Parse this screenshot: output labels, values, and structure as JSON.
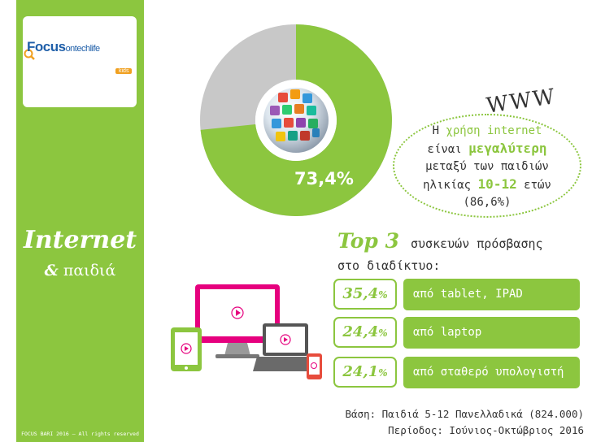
{
  "logo": {
    "brand": "Focus",
    "brand_suffix": "ontechlife",
    "badge": "kids"
  },
  "sidebar": {
    "title": "Internet",
    "subtitle_amp": "&",
    "subtitle": "παιδιά",
    "copyright": "FOCUS BARI 2016 – All rights reserved"
  },
  "donut": {
    "value": 73.4,
    "label": "73,4%",
    "colors": {
      "filled": "#8cc63f",
      "rest": "#c8c8c8"
    }
  },
  "www": "WWW",
  "bubble": {
    "l1_a": "Η ",
    "l1_b": "χρήση internet",
    "l2_a": "είναι ",
    "l2_b": "μεγαλύτερη",
    "l3": "μεταξύ των παιδιών",
    "l4_a": "ηλικίας ",
    "l4_b": "10-12",
    "l4_c": " ετών",
    "l5": "(86,6%)"
  },
  "top3": {
    "title": "Top 3",
    "line1": "συσκευών πρόσβασης",
    "line2": "στο διαδίκτυο:"
  },
  "devices": [
    {
      "pct": "35,4",
      "pct_sign": "%",
      "label": "από tablet, IPAD"
    },
    {
      "pct": "24,4",
      "pct_sign": "%",
      "label": "από laptop"
    },
    {
      "pct": "24,1",
      "pct_sign": "%",
      "label": "από σταθερό υπολογιστή"
    }
  ],
  "footer": {
    "basis": "Βάση: Παιδιά 5-12 Πανελλαδικά (824.000)",
    "period": "Περίοδος: Ιούνιος-Οκτώβριος 2016"
  },
  "icons": [
    "magnifier-icon",
    "globe-apps-icon",
    "monitor-icon",
    "tablet-icon",
    "laptop-icon",
    "smartphone-icon",
    "play-icon"
  ],
  "colors": {
    "accent": "#8cc63f",
    "magenta": "#e6007e",
    "text": "#333333"
  }
}
